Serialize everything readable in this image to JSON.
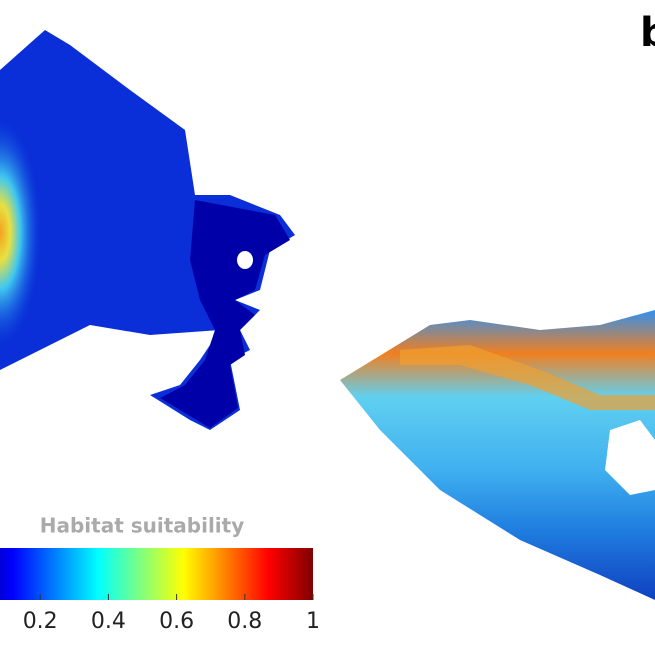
{
  "panel_label": "b",
  "colorbar": {
    "title": "Habitat suitability",
    "lim": [
      0,
      1
    ],
    "ticks": [
      0.2,
      0.4,
      0.6,
      0.8,
      1
    ]
  }
}
